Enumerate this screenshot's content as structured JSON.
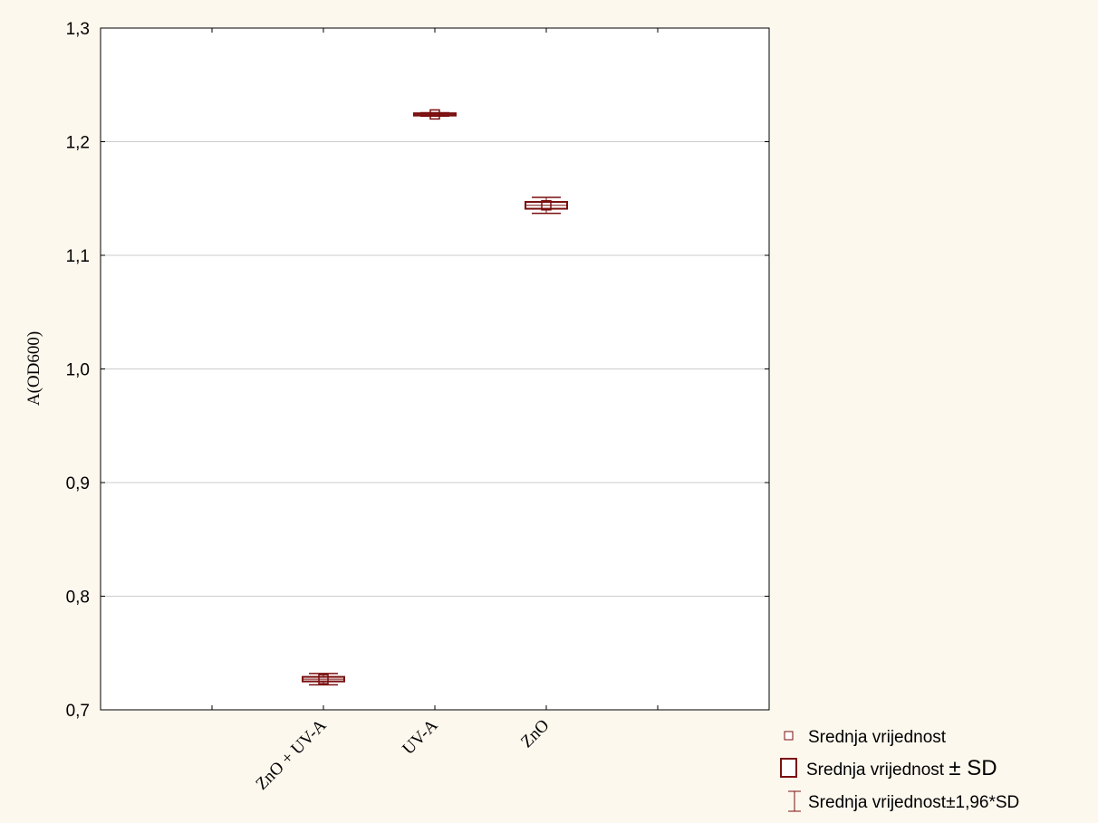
{
  "chart_data": {
    "type": "box",
    "ylabel": "A(OD600)",
    "ylim": [
      0.7,
      1.3
    ],
    "yticks": [
      "0,7",
      "0,8",
      "0,9",
      "1,0",
      "1,1",
      "1,2",
      "1,3"
    ],
    "grid": true,
    "categories": [
      "ZnO + UV-A",
      "UV-A",
      "ZnO"
    ],
    "series": [
      {
        "category": "ZnO + UV-A",
        "mean": 0.727,
        "sd_low": 0.725,
        "sd_high": 0.729,
        "ci_low": 0.722,
        "ci_high": 0.732
      },
      {
        "category": "UV-A",
        "mean": 1.224,
        "sd_low": 1.223,
        "sd_high": 1.225,
        "ci_low": 1.2225,
        "ci_high": 1.2255
      },
      {
        "category": "ZnO",
        "mean": 1.144,
        "sd_low": 1.141,
        "sd_high": 1.147,
        "ci_low": 1.137,
        "ci_high": 1.151
      }
    ],
    "legend_position": "bottom-right",
    "legend": {
      "mean": "Srednja vrijednost",
      "sd_prefix": "Srednja vrijednost",
      "sd_pm": "± SD",
      "ci": "Srednja vrijednost±1,96*SD"
    },
    "colors": {
      "marker": "#7a0f0f",
      "grid": "#cccccc",
      "axis": "#000000"
    }
  }
}
